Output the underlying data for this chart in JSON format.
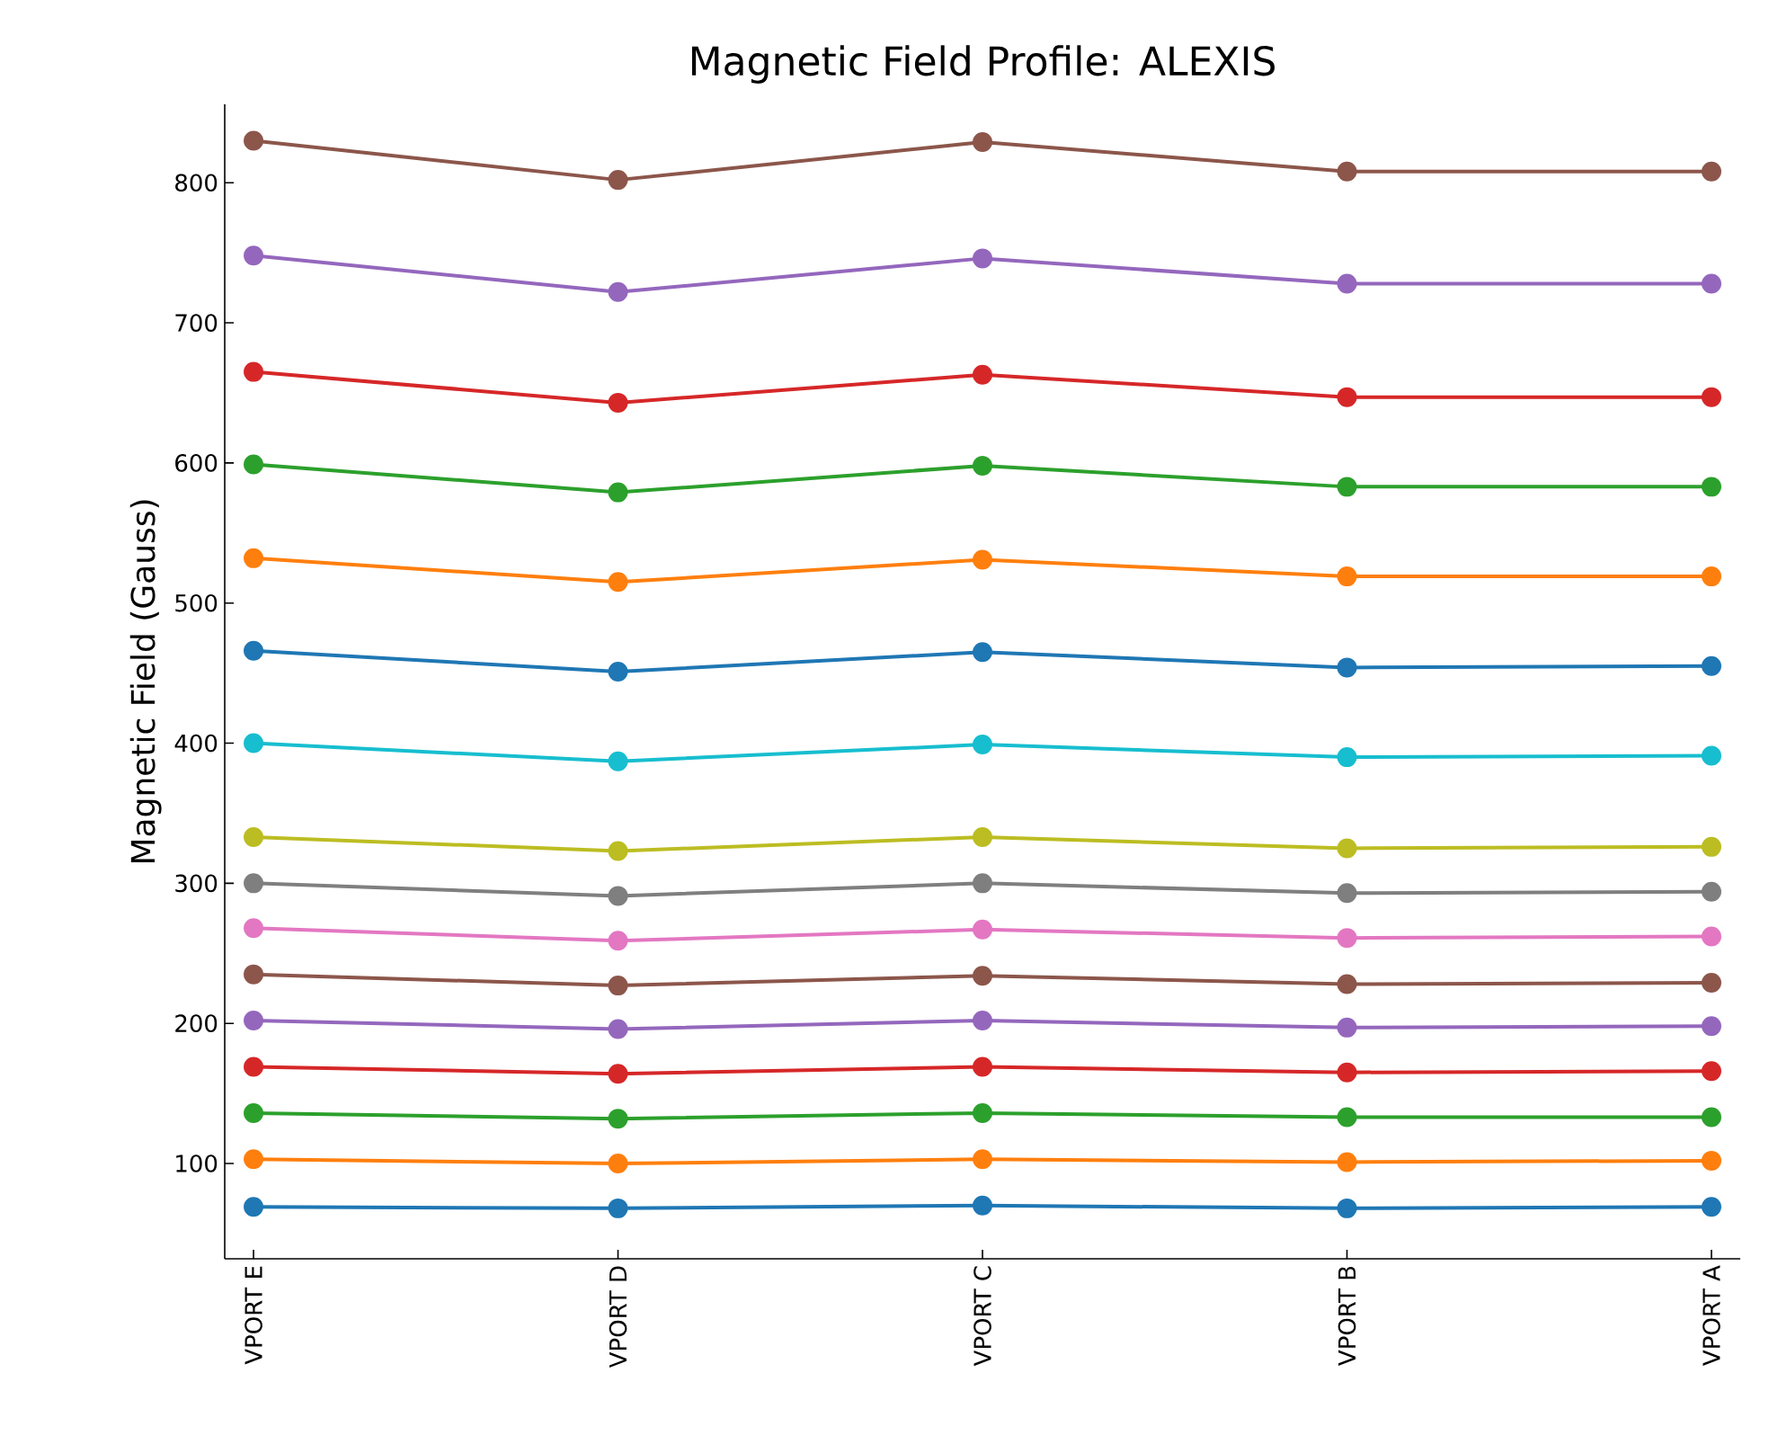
{
  "chart_data": {
    "type": "line",
    "title": "Magnetic Field Profile: ALEXIS",
    "ylabel": "Magnetic Field (Gauss)",
    "categories": [
      "VPORT E",
      "VPORT D",
      "VPORT C",
      "VPORT B",
      "VPORT A"
    ],
    "ylim": [
      32,
      856
    ],
    "yticks": [
      100,
      200,
      300,
      400,
      500,
      600,
      700,
      800
    ],
    "marker": "circle",
    "line_style": "solid",
    "grid": false,
    "legend": false,
    "series": [
      {
        "color": "#1f77b4",
        "values": [
          69,
          68,
          70,
          68,
          69
        ]
      },
      {
        "color": "#ff7f0e",
        "values": [
          103,
          100,
          103,
          101,
          102
        ]
      },
      {
        "color": "#2ca02c",
        "values": [
          136,
          132,
          136,
          133,
          133
        ]
      },
      {
        "color": "#d62728",
        "values": [
          169,
          164,
          169,
          165,
          166
        ]
      },
      {
        "color": "#9467bd",
        "values": [
          202,
          196,
          202,
          197,
          198
        ]
      },
      {
        "color": "#8c564b",
        "values": [
          235,
          227,
          234,
          228,
          229
        ]
      },
      {
        "color": "#e377c2",
        "values": [
          268,
          259,
          267,
          261,
          262
        ]
      },
      {
        "color": "#7f7f7f",
        "values": [
          300,
          291,
          300,
          293,
          294
        ]
      },
      {
        "color": "#bcbd22",
        "values": [
          333,
          323,
          333,
          325,
          326
        ]
      },
      {
        "color": "#17becf",
        "values": [
          400,
          387,
          399,
          390,
          391
        ]
      },
      {
        "color": "#1f77b4",
        "values": [
          466,
          451,
          465,
          454,
          455
        ]
      },
      {
        "color": "#ff7f0e",
        "values": [
          532,
          515,
          531,
          519,
          519
        ]
      },
      {
        "color": "#2ca02c",
        "values": [
          599,
          579,
          598,
          583,
          583
        ]
      },
      {
        "color": "#d62728",
        "values": [
          665,
          643,
          663,
          647,
          647
        ]
      },
      {
        "color": "#9467bd",
        "values": [
          748,
          722,
          746,
          728,
          728
        ]
      },
      {
        "color": "#8c564b",
        "values": [
          830,
          802,
          829,
          808,
          808
        ]
      }
    ]
  }
}
